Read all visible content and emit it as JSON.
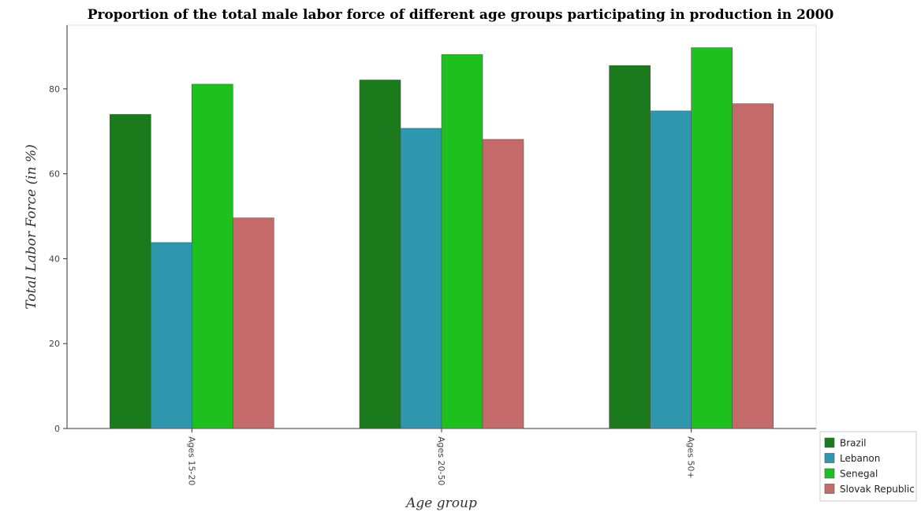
{
  "chart_data": {
    "type": "bar",
    "title": "Proportion of the total male labor force of different age groups participating in production in 2000",
    "xlabel": "Age group",
    "ylabel": "Total Labor Force (in %)",
    "ylim": [
      0,
      95
    ],
    "yticks": [
      0,
      20,
      40,
      60,
      80
    ],
    "grid": false,
    "legend_position": "bottom-right",
    "categories": [
      "Ages 15-20",
      "Ages 20-50",
      "Ages 50+"
    ],
    "series": [
      {
        "name": "Brazil",
        "color": "#1b7a1b",
        "values": [
          74.0,
          82.1,
          85.5
        ]
      },
      {
        "name": "Lebanon",
        "color": "#2f97ad",
        "values": [
          43.8,
          70.7,
          74.8
        ]
      },
      {
        "name": "Senegal",
        "color": "#1ec01e",
        "values": [
          81.1,
          88.1,
          89.7
        ]
      },
      {
        "name": "Slovak Republic",
        "color": "#c46a6a",
        "values": [
          49.6,
          68.1,
          76.5
        ]
      }
    ]
  }
}
